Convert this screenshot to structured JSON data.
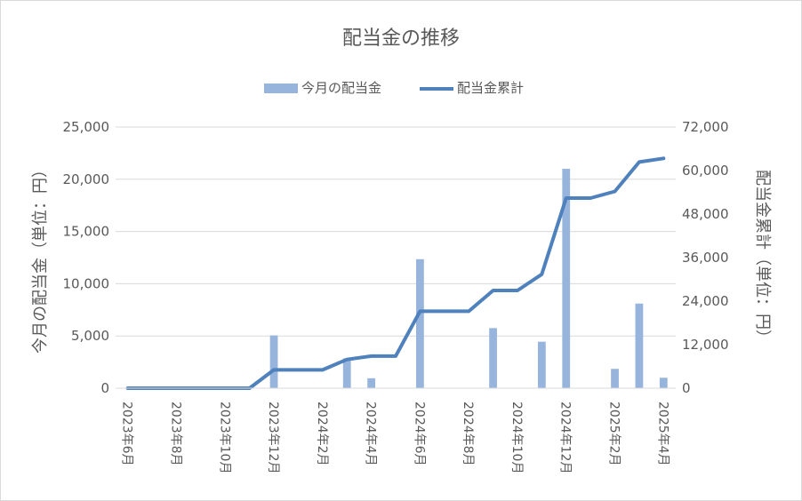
{
  "chart_data": {
    "type": "bar+line",
    "title": "配当金の推移",
    "categories": [
      "2023年6月",
      "2023年7月",
      "2023年8月",
      "2023年9月",
      "2023年10月",
      "2023年11月",
      "2023年12月",
      "2024年1月",
      "2024年2月",
      "2024年3月",
      "2024年4月",
      "2024年5月",
      "2024年6月",
      "2024年7月",
      "2024年8月",
      "2024年9月",
      "2024年10月",
      "2024年11月",
      "2024年12月",
      "2025年1月",
      "2025年2月",
      "2025年3月",
      "2025年4月"
    ],
    "x_tick_labels": [
      "2023年6月",
      "2023年8月",
      "2023年10月",
      "2023年12月",
      "2024年2月",
      "2024年4月",
      "2024年6月",
      "2024年8月",
      "2024年10月",
      "2024年12月",
      "2025年2月",
      "2025年4月"
    ],
    "series": [
      {
        "name": "今月の配当金",
        "type": "bar",
        "axis": "left",
        "color": "#97b4dd",
        "values": [
          0,
          0,
          0,
          0,
          0,
          0,
          5050,
          0,
          0,
          2850,
          950,
          0,
          12350,
          0,
          0,
          5750,
          0,
          4450,
          21000,
          0,
          1850,
          8100,
          1000
        ]
      },
      {
        "name": "配当金累計",
        "type": "line",
        "axis": "right",
        "color": "#4f81bd",
        "values": [
          0,
          0,
          0,
          0,
          0,
          0,
          5050,
          5050,
          5050,
          7900,
          8850,
          8850,
          21200,
          21200,
          21200,
          26950,
          26950,
          31400,
          52400,
          52400,
          54250,
          62350,
          63350
        ]
      }
    ],
    "y_left": {
      "label": "今月の配当金（単位：円）",
      "range": [
        0,
        25000
      ],
      "ticks": [
        "0",
        "5,000",
        "10,000",
        "15,000",
        "20,000",
        "25,000"
      ]
    },
    "y_right": {
      "label": "配当金累計（単位：円）",
      "range": [
        0,
        72000
      ],
      "ticks": [
        "0",
        "12,000",
        "24,000",
        "36,000",
        "48,000",
        "60,000",
        "72,000"
      ]
    },
    "legend": "top",
    "grid": "horizontal"
  }
}
